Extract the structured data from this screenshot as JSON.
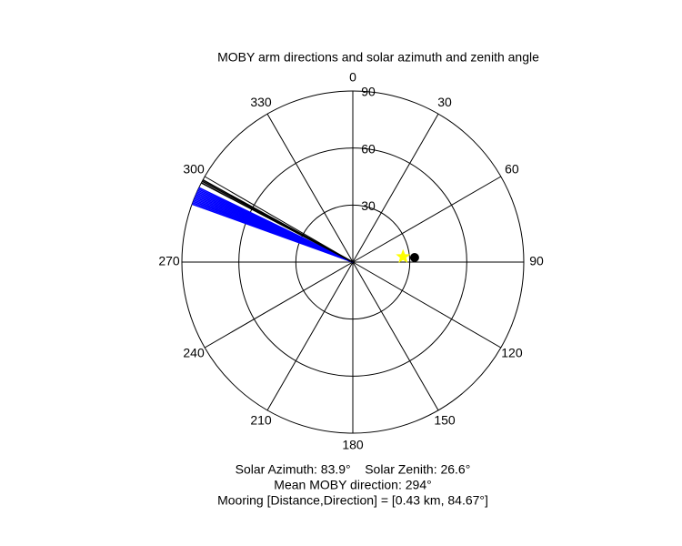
{
  "chart_data": {
    "type": "polar",
    "title": "MOBY arm directions and solar azimuth and zenith angle",
    "thetaticks": [
      0,
      30,
      60,
      90,
      120,
      150,
      180,
      210,
      240,
      270,
      300,
      330
    ],
    "rlim": [
      0,
      90
    ],
    "rticks": [
      30,
      60,
      90
    ],
    "series": [
      {
        "color": "#0000ff",
        "values": [
          289.8,
          290.3,
          290.8,
          291.3,
          291.8,
          292.3,
          292.8,
          293.3,
          293.8,
          294.3,
          294.8,
          295.3,
          295.8
        ]
      },
      {
        "color": "#000000",
        "values": [
          297.6,
          298.2,
          298.7
        ]
      }
    ],
    "markers": [
      {
        "color": "#000000",
        "shape": "circle",
        "azimuth": 85.8,
        "zenith": 32.6
      },
      {
        "color": "#ffff00",
        "shape": "star",
        "azimuth": 83.9,
        "zenith": 26.6
      }
    ],
    "captions": [
      "Solar Azimuth: 83.9°    Solar Zenith: 26.6°",
      "Mean MOBY direction: 294°",
      "Mooring [Distance,Direction] = [0.43 km, 84.67°]"
    ]
  }
}
